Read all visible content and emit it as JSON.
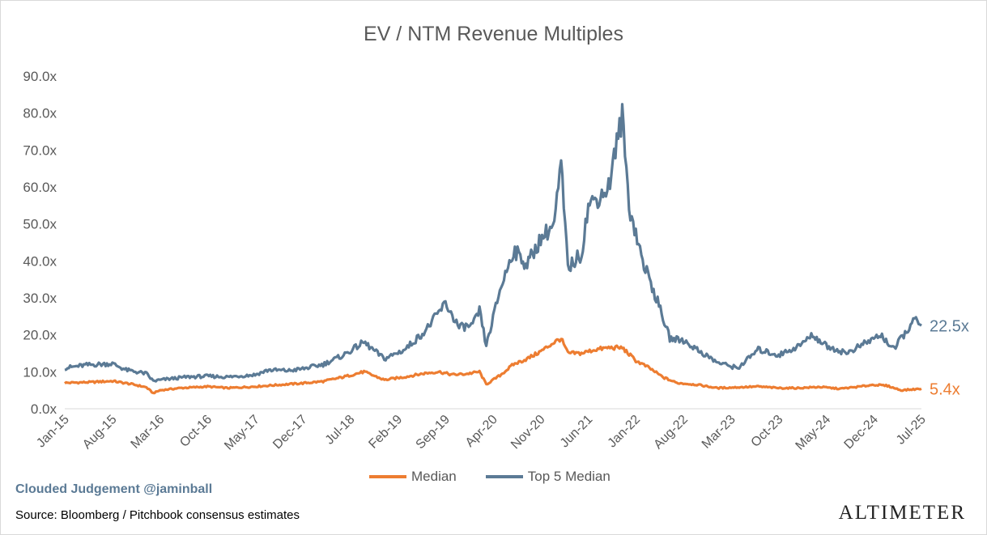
{
  "chart_data": {
    "type": "line",
    "title": "EV / NTM Revenue Multiples",
    "xlabel": "",
    "ylabel": "",
    "ylim": [
      0,
      90
    ],
    "y_ticks": [
      "0.0x",
      "10.0x",
      "20.0x",
      "30.0x",
      "40.0x",
      "50.0x",
      "60.0x",
      "70.0x",
      "80.0x",
      "90.0x"
    ],
    "x_ticks": [
      "Jan-15",
      "Aug-15",
      "Mar-16",
      "Oct-16",
      "May-17",
      "Dec-17",
      "Jul-18",
      "Feb-19",
      "Sep-19",
      "Apr-20",
      "Nov-20",
      "Jun-21",
      "Jan-22",
      "Aug-22",
      "Mar-23",
      "Oct-23",
      "May-24",
      "Dec-24",
      "Jul-25"
    ],
    "grid": false,
    "legend_position": "bottom",
    "series": [
      {
        "name": "Median",
        "color": "#ed7d31",
        "end_label": "5.4x",
        "points": [
          [
            "2015-01",
            7.0
          ],
          [
            "2015-05",
            7.2
          ],
          [
            "2015-08",
            7.5
          ],
          [
            "2015-11",
            6.6
          ],
          [
            "2016-01",
            5.8
          ],
          [
            "2016-02",
            4.2
          ],
          [
            "2016-03",
            5.0
          ],
          [
            "2016-06",
            5.6
          ],
          [
            "2016-10",
            6.0
          ],
          [
            "2017-01",
            5.6
          ],
          [
            "2017-05",
            6.0
          ],
          [
            "2017-08",
            6.4
          ],
          [
            "2017-12",
            6.9
          ],
          [
            "2018-03",
            7.4
          ],
          [
            "2018-06",
            8.6
          ],
          [
            "2018-09",
            10.0
          ],
          [
            "2018-12",
            7.8
          ],
          [
            "2019-03",
            8.6
          ],
          [
            "2019-06",
            9.6
          ],
          [
            "2019-08",
            10.0
          ],
          [
            "2019-10",
            9.2
          ],
          [
            "2019-12",
            9.4
          ],
          [
            "2020-02",
            10.0
          ],
          [
            "2020-03",
            6.6
          ],
          [
            "2020-05",
            9.0
          ],
          [
            "2020-07",
            12.0
          ],
          [
            "2020-09",
            13.5
          ],
          [
            "2020-11",
            15.5
          ],
          [
            "2021-01",
            18.0
          ],
          [
            "2021-02",
            19.0
          ],
          [
            "2021-03",
            15.0
          ],
          [
            "2021-05",
            15.0
          ],
          [
            "2021-07",
            16.0
          ],
          [
            "2021-09",
            16.5
          ],
          [
            "2021-11",
            16.5
          ],
          [
            "2022-01",
            13.0
          ],
          [
            "2022-03",
            11.0
          ],
          [
            "2022-05",
            8.5
          ],
          [
            "2022-07",
            7.0
          ],
          [
            "2022-10",
            6.5
          ],
          [
            "2023-01",
            5.6
          ],
          [
            "2023-04",
            5.8
          ],
          [
            "2023-07",
            6.0
          ],
          [
            "2023-10",
            5.6
          ],
          [
            "2024-01",
            5.6
          ],
          [
            "2024-04",
            5.9
          ],
          [
            "2024-07",
            5.4
          ],
          [
            "2024-10",
            6.0
          ],
          [
            "2024-12",
            6.5
          ],
          [
            "2025-02",
            6.2
          ],
          [
            "2025-04",
            5.0
          ],
          [
            "2025-07",
            5.4
          ]
        ]
      },
      {
        "name": "Top 5 Median",
        "color": "#5b7a95",
        "end_label": "22.5x",
        "points": [
          [
            "2015-01",
            11.0
          ],
          [
            "2015-04",
            11.8
          ],
          [
            "2015-08",
            12.2
          ],
          [
            "2015-10",
            10.5
          ],
          [
            "2016-01",
            9.5
          ],
          [
            "2016-02",
            7.5
          ],
          [
            "2016-04",
            8.0
          ],
          [
            "2016-07",
            8.6
          ],
          [
            "2016-10",
            8.8
          ],
          [
            "2017-01",
            8.6
          ],
          [
            "2017-05",
            9.2
          ],
          [
            "2017-07",
            10.5
          ],
          [
            "2017-10",
            10.3
          ],
          [
            "2017-12",
            10.8
          ],
          [
            "2018-03",
            12.0
          ],
          [
            "2018-06",
            14.5
          ],
          [
            "2018-09",
            18.0
          ],
          [
            "2018-12",
            13.5
          ],
          [
            "2019-03",
            16.0
          ],
          [
            "2019-06",
            21.0
          ],
          [
            "2019-08",
            26.0
          ],
          [
            "2019-09",
            28.5
          ],
          [
            "2019-11",
            22.0
          ],
          [
            "2020-01",
            22.5
          ],
          [
            "2020-02",
            26.5
          ],
          [
            "2020-03",
            17.0
          ],
          [
            "2020-05",
            32.0
          ],
          [
            "2020-07",
            43.0
          ],
          [
            "2020-09",
            39.0
          ],
          [
            "2020-11",
            46.0
          ],
          [
            "2021-01",
            50.0
          ],
          [
            "2021-02",
            66.0
          ],
          [
            "2021-03",
            38.0
          ],
          [
            "2021-05",
            42.0
          ],
          [
            "2021-06",
            55.0
          ],
          [
            "2021-08",
            58.0
          ],
          [
            "2021-09",
            60.0
          ],
          [
            "2021-10",
            70.0
          ],
          [
            "2021-11",
            79.0
          ],
          [
            "2021-12",
            55.0
          ],
          [
            "2022-02",
            40.0
          ],
          [
            "2022-04",
            30.0
          ],
          [
            "2022-06",
            19.0
          ],
          [
            "2022-08",
            18.5
          ],
          [
            "2022-10",
            16.0
          ],
          [
            "2023-01",
            12.5
          ],
          [
            "2023-04",
            11.0
          ],
          [
            "2023-07",
            16.0
          ],
          [
            "2023-10",
            14.5
          ],
          [
            "2024-01",
            17.0
          ],
          [
            "2024-03",
            20.0
          ],
          [
            "2024-05",
            17.0
          ],
          [
            "2024-08",
            15.0
          ],
          [
            "2024-11",
            18.0
          ],
          [
            "2025-01",
            20.0
          ],
          [
            "2025-03",
            16.0
          ],
          [
            "2025-04",
            19.0
          ],
          [
            "2025-06",
            24.0
          ],
          [
            "2025-07",
            22.5
          ]
        ]
      }
    ]
  },
  "footer": {
    "credit": "Clouded Judgement @jaminball",
    "source": "Source: Bloomberg / Pitchbook consensus estimates",
    "brand": "ALTIMETER"
  }
}
